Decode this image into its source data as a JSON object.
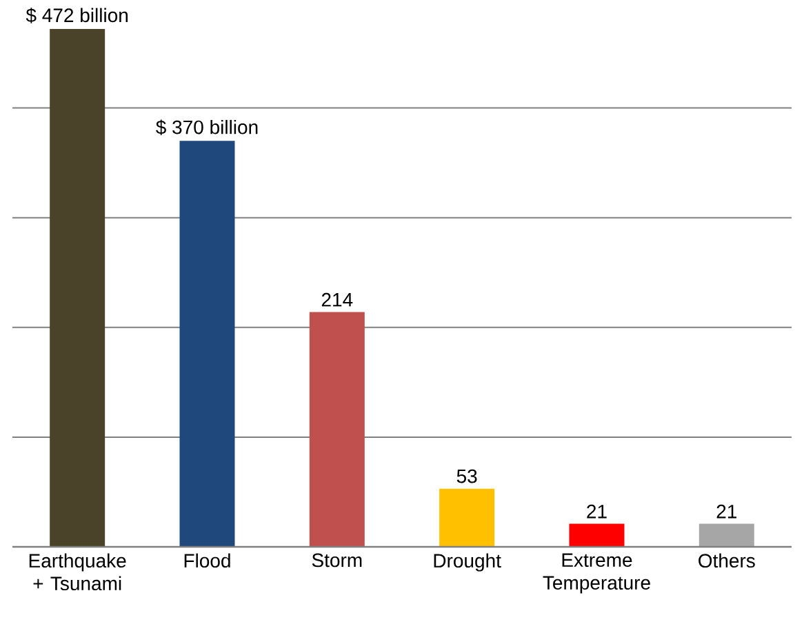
{
  "chart_data": {
    "type": "bar",
    "categories": [
      "Earthquake + Tsunami",
      "Flood",
      "Storm",
      "Drought",
      "Extreme Temperature",
      "Others"
    ],
    "values": [
      472,
      370,
      214,
      53,
      21,
      21
    ],
    "colors": [
      "#4a4329",
      "#1f497d",
      "#c0504d",
      "#ffc000",
      "#ff0000",
      "#a6a6a6"
    ],
    "value_labels": [
      "$ 472 billion",
      "$ 370 billion",
      "214",
      "53",
      "21",
      "21"
    ],
    "grid": "y",
    "tick_labels": "x"
  }
}
